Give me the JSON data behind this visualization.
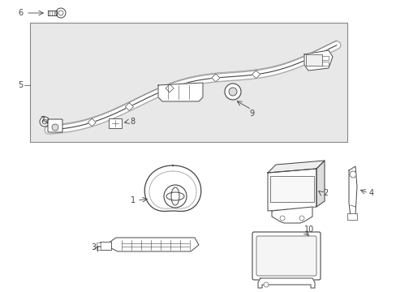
{
  "bg_color": "#ffffff",
  "line_color": "#444444",
  "fig_width": 4.89,
  "fig_height": 3.6,
  "dpi": 100,
  "box_fill": "#e8e8e8",
  "label_fontsize": 7.0
}
